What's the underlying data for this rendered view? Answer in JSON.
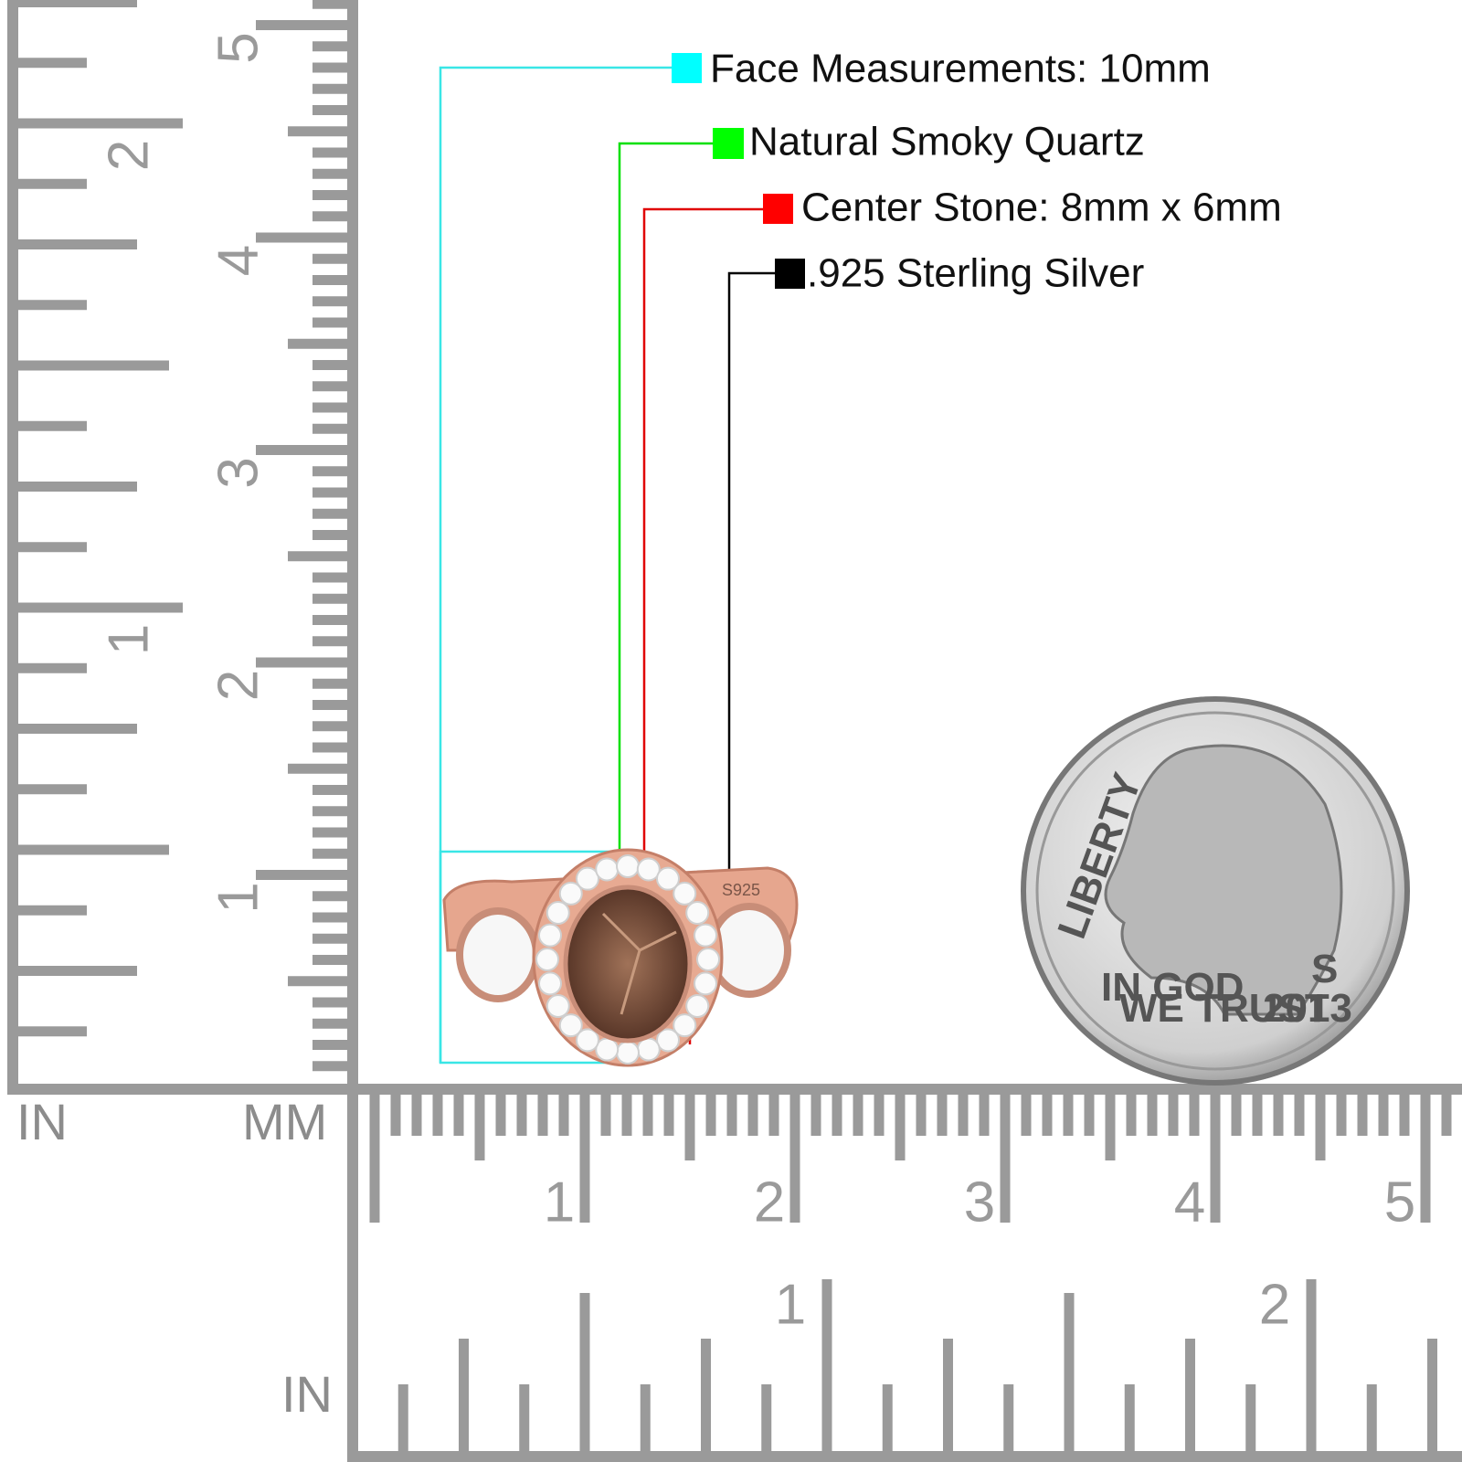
{
  "callouts": [
    {
      "label": "Face Measurements: 10mm",
      "color": "#00ffff"
    },
    {
      "label": "Natural Smoky Quartz",
      "color": "#00ff00"
    },
    {
      "label": "Center Stone: 8mm x 6mm",
      "color": "#ff0000"
    },
    {
      "label": ".925 Sterling Silver",
      "color": "#000000"
    }
  ],
  "vertical_ruler": {
    "unit_left": "IN",
    "unit_right": "MM",
    "cm_labels": [
      "1",
      "2",
      "3",
      "4",
      "5"
    ],
    "in_labels": [
      "1",
      "2"
    ]
  },
  "horizontal_ruler": {
    "unit": "IN",
    "cm_labels": [
      "1",
      "2",
      "3",
      "4",
      "5"
    ],
    "in_labels": [
      "1",
      "2"
    ]
  },
  "ring": {
    "stamp": "S925"
  },
  "coin": {
    "motto_top": "LIBERTY",
    "motto_1": "IN GOD",
    "motto_2": "WE TRUST",
    "year": "2013",
    "mint": "S"
  }
}
